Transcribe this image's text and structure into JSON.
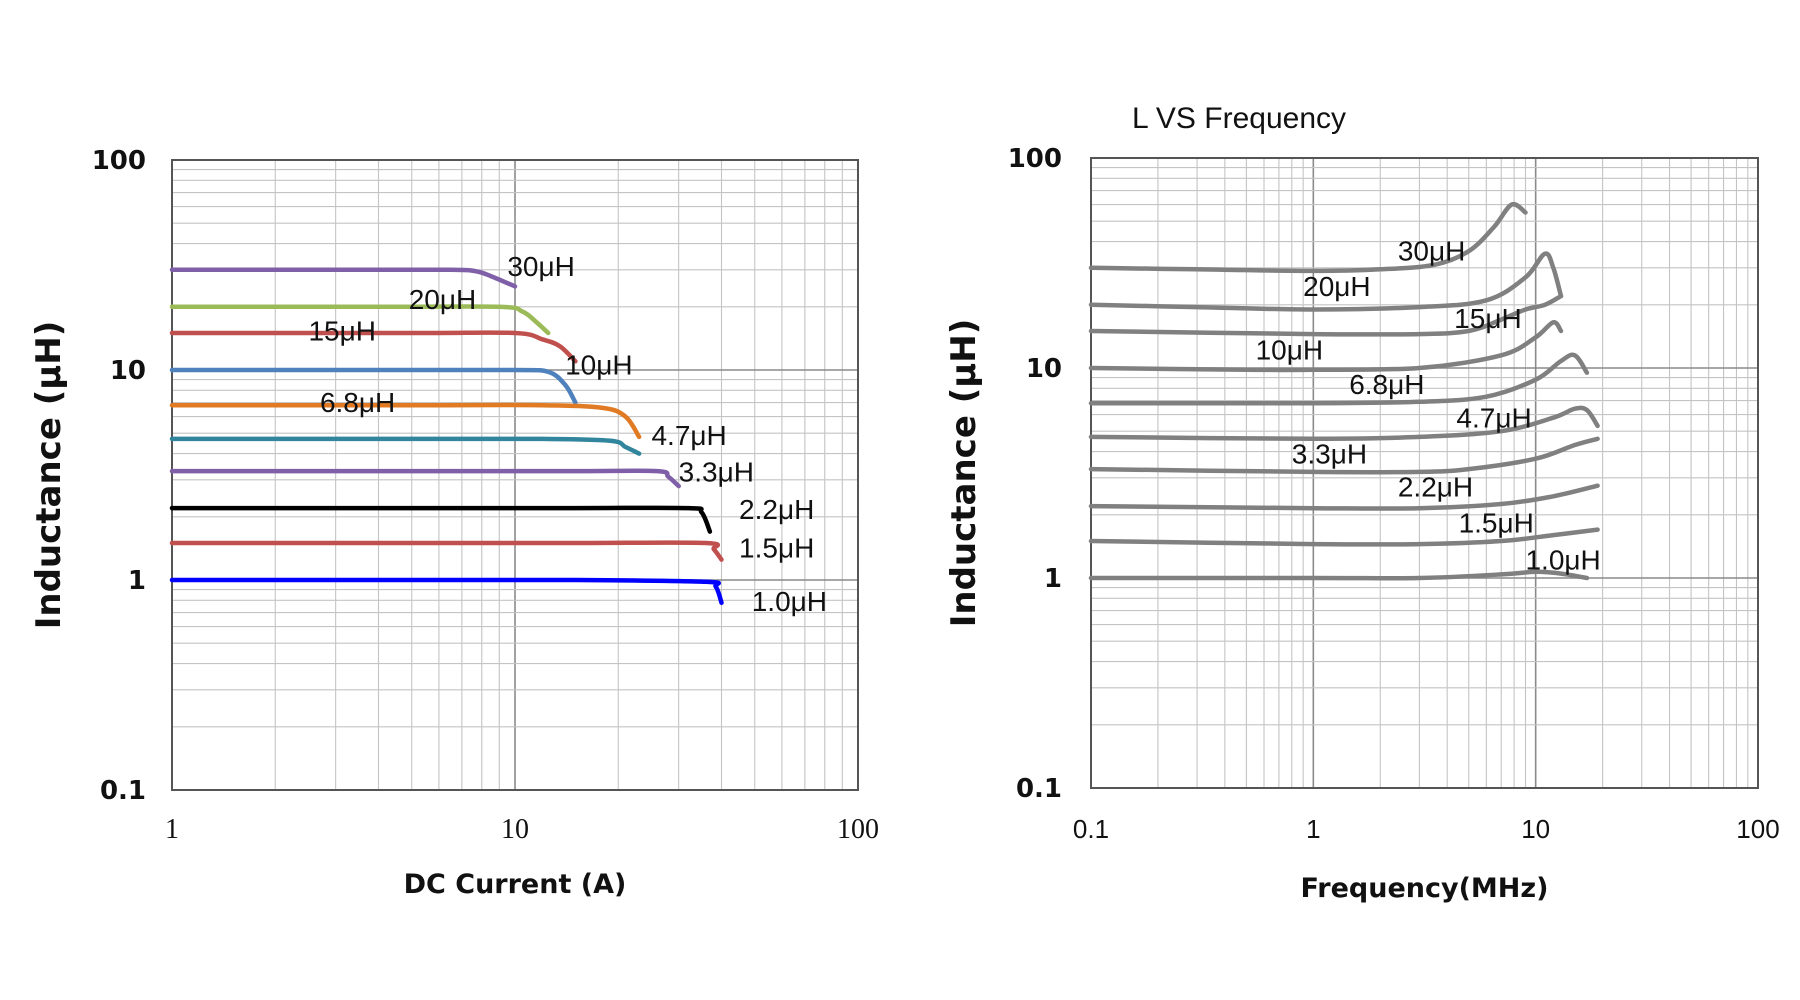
{
  "chart_data": [
    {
      "type": "line",
      "title": "",
      "xlabel": "DC Current (A)",
      "ylabel": "Inductance (μH)",
      "xscale": "log",
      "yscale": "log",
      "xlim": [
        1,
        100
      ],
      "ylim": [
        0.1,
        100
      ],
      "grid": true,
      "legend": "none",
      "xticks": [
        "1",
        "10",
        "100"
      ],
      "yticks": [
        "100",
        "10",
        "1",
        "0.1"
      ],
      "series": [
        {
          "name": "30μH",
          "color": "#7F5FA8",
          "x": [
            1,
            3,
            6.5,
            7.7,
            8.5,
            10
          ],
          "y": [
            30,
            30,
            30,
            29.5,
            28,
            25
          ]
        },
        {
          "name": "20μH",
          "color": "#9BBB59",
          "x": [
            1,
            4,
            9,
            10.5,
            11.5,
            12.5
          ],
          "y": [
            20,
            20,
            20,
            19,
            17,
            15
          ]
        },
        {
          "name": "15μH",
          "color": "#C0504D",
          "x": [
            1,
            5,
            10,
            12,
            13.5,
            15
          ],
          "y": [
            15,
            15,
            15,
            14,
            13,
            11
          ]
        },
        {
          "name": "10μH",
          "color": "#4F81BD",
          "x": [
            1,
            5,
            10,
            12.5,
            14,
            15
          ],
          "y": [
            10,
            10,
            10,
            9.8,
            8.5,
            7
          ]
        },
        {
          "name": "6.8μH",
          "color": "#E07B24",
          "x": [
            1,
            5,
            12,
            18,
            21,
            23
          ],
          "y": [
            6.8,
            6.8,
            6.8,
            6.6,
            6,
            4.8
          ]
        },
        {
          "name": "4.7μH",
          "color": "#31859C",
          "x": [
            1,
            5,
            12,
            19,
            21,
            23
          ],
          "y": [
            4.7,
            4.7,
            4.7,
            4.6,
            4.3,
            4
          ]
        },
        {
          "name": "3.3μH",
          "color": "#7F5FA8",
          "x": [
            1,
            5,
            15,
            26,
            28,
            30
          ],
          "y": [
            3.3,
            3.3,
            3.3,
            3.3,
            3.1,
            2.8
          ]
        },
        {
          "name": "2.2μH",
          "color": "#000000",
          "x": [
            1,
            5,
            15,
            32,
            35,
            37
          ],
          "y": [
            2.2,
            2.2,
            2.2,
            2.2,
            2.1,
            1.7
          ]
        },
        {
          "name": "1.5μH",
          "color": "#C0504D",
          "x": [
            1,
            5,
            15,
            36,
            38,
            40
          ],
          "y": [
            1.5,
            1.5,
            1.5,
            1.5,
            1.4,
            1.25
          ]
        },
        {
          "name": "1.0μH",
          "color": "#0000FF",
          "x": [
            1,
            5,
            15,
            36,
            38.5,
            40
          ],
          "y": [
            1.0,
            1.0,
            1.0,
            0.98,
            0.93,
            0.78
          ]
        }
      ],
      "annotations": [
        {
          "text": "30μH",
          "x": 9.5,
          "y": 28
        },
        {
          "text": "20μH",
          "x": 4.9,
          "y": 19.5
        },
        {
          "text": "15μH",
          "x": 2.5,
          "y": 13.8
        },
        {
          "text": "10μH",
          "x": 14.0,
          "y": 9.5
        },
        {
          "text": "6.8μH",
          "x": 2.7,
          "y": 6.3
        },
        {
          "text": "4.7μH",
          "x": 25.0,
          "y": 4.4
        },
        {
          "text": "3.3μH",
          "x": 30.0,
          "y": 2.95
        },
        {
          "text": "2.2μH",
          "x": 45.0,
          "y": 1.95
        },
        {
          "text": "1.5μH",
          "x": 45.0,
          "y": 1.28
        },
        {
          "text": "1.0μH",
          "x": 49.0,
          "y": 0.71
        }
      ]
    },
    {
      "type": "line",
      "title": "L VS Frequency",
      "xlabel": "Frequency(MHz)",
      "ylabel": "Inductance (μH)",
      "xscale": "log",
      "yscale": "log",
      "xlim": [
        0.1,
        100
      ],
      "ylim": [
        0.1,
        100
      ],
      "grid": true,
      "legend": "none",
      "xticks": [
        "0.1",
        "1",
        "10",
        "100"
      ],
      "yticks": [
        "100",
        "10",
        "1",
        "0.1"
      ],
      "series": [
        {
          "name": "30μH",
          "color": "#808080",
          "x": [
            0.1,
            0.3,
            1,
            2,
            3.5,
            5,
            6.5,
            7.8,
            9
          ],
          "y": [
            30,
            29.5,
            29,
            29.5,
            31,
            36,
            47,
            60,
            55
          ]
        },
        {
          "name": "20μH",
          "color": "#808080",
          "x": [
            0.1,
            0.3,
            1,
            3,
            6,
            9,
            11,
            12,
            13
          ],
          "y": [
            20,
            19.5,
            19,
            19.5,
            21,
            27,
            35,
            30,
            22
          ]
        },
        {
          "name": "15μH",
          "color": "#808080",
          "x": [
            0.1,
            1,
            3,
            5,
            7,
            9,
            11,
            13
          ],
          "y": [
            15,
            14.5,
            14.5,
            15,
            17,
            19,
            20,
            22
          ]
        },
        {
          "name": "10μH",
          "color": "#808080",
          "x": [
            0.1,
            0.5,
            1,
            3,
            7,
            10,
            12,
            13
          ],
          "y": [
            10,
            9.8,
            9.8,
            10,
            11.5,
            14,
            16.5,
            15
          ]
        },
        {
          "name": "6.8μH",
          "color": "#808080",
          "x": [
            0.1,
            1,
            3,
            6,
            10,
            13,
            15,
            17
          ],
          "y": [
            6.8,
            6.8,
            6.9,
            7.3,
            8.8,
            10.8,
            11.5,
            9.5
          ]
        },
        {
          "name": "4.7μH",
          "color": "#808080",
          "x": [
            0.1,
            1,
            3,
            7,
            12,
            15,
            17,
            19
          ],
          "y": [
            4.7,
            4.6,
            4.7,
            5.0,
            5.8,
            6.4,
            6.3,
            5.3
          ]
        },
        {
          "name": "3.3μH",
          "color": "#808080",
          "x": [
            0.1,
            1,
            3,
            5,
            10,
            15,
            19
          ],
          "y": [
            3.3,
            3.2,
            3.2,
            3.3,
            3.7,
            4.3,
            4.6
          ]
        },
        {
          "name": "2.2μH",
          "color": "#808080",
          "x": [
            0.1,
            1,
            3,
            7,
            12,
            19
          ],
          "y": [
            2.2,
            2.15,
            2.15,
            2.25,
            2.45,
            2.75
          ]
        },
        {
          "name": "1.5μH",
          "color": "#808080",
          "x": [
            0.1,
            1,
            3,
            7,
            12,
            19
          ],
          "y": [
            1.5,
            1.45,
            1.45,
            1.5,
            1.6,
            1.7
          ]
        },
        {
          "name": "1.0μH",
          "color": "#808080",
          "x": [
            0.1,
            1,
            3,
            7,
            10,
            13,
            17
          ],
          "y": [
            1.0,
            1.0,
            1.0,
            1.04,
            1.07,
            1.05,
            1.0
          ]
        }
      ],
      "annotations": [
        {
          "text": "30μH",
          "x": 2.4,
          "y": 32.5
        },
        {
          "text": "20μH",
          "x": 0.9,
          "y": 22.0
        },
        {
          "text": "15μH",
          "x": 4.3,
          "y": 15.5
        },
        {
          "text": "10μH",
          "x": 0.55,
          "y": 11.0
        },
        {
          "text": "6.8μH",
          "x": 1.45,
          "y": 7.5
        },
        {
          "text": "4.7μH",
          "x": 4.4,
          "y": 5.2
        },
        {
          "text": "3.3μH",
          "x": 0.8,
          "y": 3.5
        },
        {
          "text": "2.2μH",
          "x": 2.4,
          "y": 2.45
        },
        {
          "text": "1.5μH",
          "x": 4.5,
          "y": 1.65
        },
        {
          "text": "1.0μH",
          "x": 9.0,
          "y": 1.1
        }
      ]
    }
  ]
}
